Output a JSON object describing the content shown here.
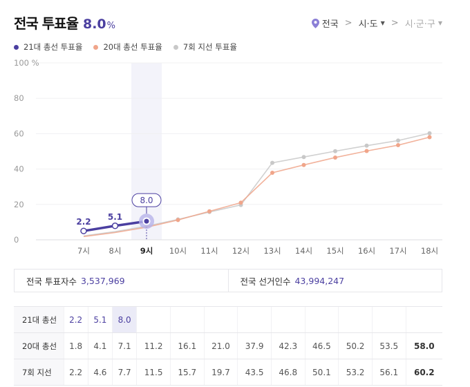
{
  "header": {
    "title": "전국 투표율",
    "value": "8.0",
    "unit": "%"
  },
  "breadcrumb": {
    "items": [
      {
        "label": "전국",
        "icon": "location-pin-icon"
      },
      {
        "label": "시·도",
        "dropdown": true
      },
      {
        "label": "시·군·구",
        "dropdown": true,
        "disabled": true
      }
    ]
  },
  "legend": [
    {
      "label": "21대 총선 투표율",
      "color": "#4b3fa0"
    },
    {
      "label": "20대 총선 투표율",
      "color": "#f0a58a"
    },
    {
      "label": "7회 지선 투표율",
      "color": "#c8c8c8"
    }
  ],
  "colors": {
    "accent": "#4b3fa0",
    "series20": "#f0a58a",
    "series7": "#c8c8c8",
    "highlight": "#ebebf7"
  },
  "chart_data": {
    "type": "line",
    "title": "전국 투표율",
    "xlabel": "",
    "ylabel": "%",
    "ylim": [
      0,
      100
    ],
    "yticks": [
      "0",
      "20",
      "40",
      "60",
      "80",
      "100 %"
    ],
    "categories": [
      "7시",
      "8시",
      "9시",
      "10시",
      "11시",
      "12시",
      "13시",
      "14시",
      "15시",
      "16시",
      "17시",
      "18시"
    ],
    "grid": true,
    "legend_position": "top-left",
    "highlighted_category": "9시",
    "tooltip": "8.0",
    "series": [
      {
        "name": "21대 총선 투표율",
        "values": [
          2.2,
          5.1,
          8.0
        ]
      },
      {
        "name": "20대 총선 투표율",
        "values": [
          1.8,
          4.1,
          7.1,
          11.2,
          16.1,
          21.0,
          37.9,
          42.3,
          46.5,
          50.2,
          53.5,
          58.0
        ]
      },
      {
        "name": "7회 지선 투표율",
        "values": [
          2.2,
          4.6,
          7.7,
          11.5,
          15.7,
          19.7,
          43.5,
          46.8,
          50.1,
          53.2,
          56.1,
          60.2
        ]
      }
    ]
  },
  "summary": {
    "voters_label": "전국 투표자수",
    "voters_value": "3,537,969",
    "electorate_label": "전국 선거인수",
    "electorate_value": "43,994,247"
  },
  "table": {
    "rows": [
      {
        "label": "21대 총선",
        "values": [
          "2.2",
          "5.1",
          "8.0",
          "",
          "",
          "",
          "",
          "",
          "",
          "",
          "",
          ""
        ]
      },
      {
        "label": "20대 총선",
        "values": [
          "1.8",
          "4.1",
          "7.1",
          "11.2",
          "16.1",
          "21.0",
          "37.9",
          "42.3",
          "46.5",
          "50.2",
          "53.5",
          "58.0"
        ]
      },
      {
        "label": "7회 지선",
        "values": [
          "2.2",
          "4.6",
          "7.7",
          "11.5",
          "15.7",
          "19.7",
          "43.5",
          "46.8",
          "50.1",
          "53.2",
          "56.1",
          "60.2"
        ]
      }
    ]
  }
}
